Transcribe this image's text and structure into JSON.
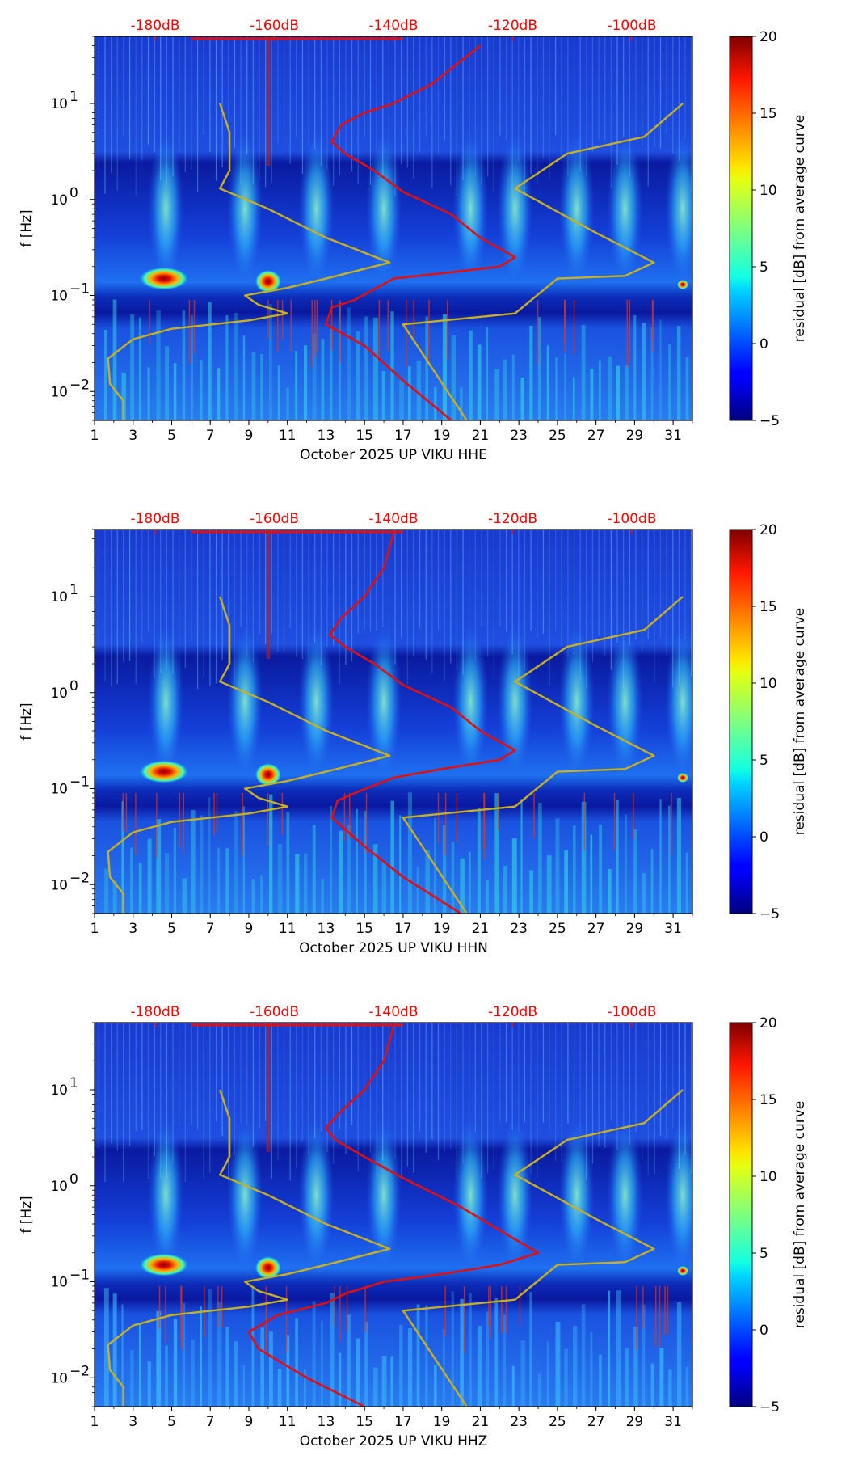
{
  "chart_data": [
    {
      "type": "heatmap",
      "channel": "HHE",
      "xlabel": "October 2025 UP VIKU  HHE",
      "ylabel": "f [Hz]",
      "xlim": [
        1,
        32
      ],
      "x_ticks": [
        "1",
        "3",
        "5",
        "7",
        "9",
        "11",
        "13",
        "15",
        "17",
        "19",
        "21",
        "23",
        "25",
        "27",
        "29",
        "31"
      ],
      "ylim": [
        0.005,
        50
      ],
      "y_ticks": [
        {
          "value": 0.01,
          "base": "10",
          "exp": "−2"
        },
        {
          "value": 0.1,
          "base": "10",
          "exp": "−1"
        },
        {
          "value": 1,
          "base": "10",
          "exp": "0"
        },
        {
          "value": 10,
          "base": "10",
          "exp": "1"
        }
      ],
      "db_scale_labels": [
        "-180dB",
        "-160dB",
        "-140dB",
        "-120dB",
        "-100dB"
      ],
      "colorbar": {
        "label": "residual [dB] from average curve",
        "min": -5,
        "max": 20,
        "ticks": [
          "−5",
          "0",
          "5",
          "10",
          "15",
          "20"
        ]
      },
      "series": [
        {
          "name": "average PSD curve",
          "color": "#e01010",
          "points": [
            [
              19.5,
              0.005
            ],
            [
              17,
              0.013
            ],
            [
              15,
              0.03
            ],
            [
              13,
              0.05
            ],
            [
              13.3,
              0.075
            ],
            [
              14.5,
              0.09
            ],
            [
              16.5,
              0.15
            ],
            [
              19,
              0.17
            ],
            [
              22,
              0.2
            ],
            [
              22.8,
              0.25
            ],
            [
              21,
              0.4
            ],
            [
              19.5,
              0.7
            ],
            [
              17,
              1.2
            ],
            [
              15.5,
              2
            ],
            [
              14,
              3
            ],
            [
              13.3,
              4
            ],
            [
              13.8,
              6
            ],
            [
              15,
              8
            ],
            [
              16.5,
              10
            ],
            [
              18.5,
              16
            ],
            [
              21,
              40
            ]
          ]
        },
        {
          "name": "noise model bounds",
          "color": "#c8b020",
          "points": [
            [
              20.3,
              0.005
            ],
            [
              17,
              0.05
            ],
            [
              22.8,
              0.065
            ],
            [
              25,
              0.15
            ],
            [
              28.5,
              0.16
            ],
            [
              30,
              0.22
            ],
            [
              27,
              0.45
            ],
            [
              22.8,
              1.3
            ],
            [
              25.5,
              3
            ],
            [
              29.5,
              4.5
            ],
            [
              31.5,
              10
            ]
          ]
        },
        {
          "name": "noise model bounds",
          "color": "#c8b020",
          "points": [
            [
              2.5,
              0.005
            ],
            [
              2.5,
              0.008
            ],
            [
              1.8,
              0.012
            ],
            [
              1.7,
              0.022
            ],
            [
              3,
              0.035
            ],
            [
              5,
              0.045
            ],
            [
              9,
              0.055
            ],
            [
              11,
              0.065
            ],
            [
              9.5,
              0.08
            ],
            [
              8.8,
              0.1
            ],
            [
              11,
              0.12
            ],
            [
              13,
              0.15
            ],
            [
              16.3,
              0.22
            ],
            [
              13,
              0.4
            ],
            [
              10,
              0.8
            ],
            [
              7.5,
              1.3
            ],
            [
              8,
              2
            ],
            [
              8,
              5
            ],
            [
              7.5,
              10
            ]
          ]
        }
      ]
    },
    {
      "type": "heatmap",
      "channel": "HHN",
      "xlabel": "October 2025 UP VIKU  HHN",
      "ylabel": "f [Hz]",
      "xlim": [
        1,
        32
      ],
      "x_ticks": [
        "1",
        "3",
        "5",
        "7",
        "9",
        "11",
        "13",
        "15",
        "17",
        "19",
        "21",
        "23",
        "25",
        "27",
        "29",
        "31"
      ],
      "ylim": [
        0.005,
        50
      ],
      "y_ticks": [
        {
          "value": 0.01,
          "base": "10",
          "exp": "−2"
        },
        {
          "value": 0.1,
          "base": "10",
          "exp": "−1"
        },
        {
          "value": 1,
          "base": "10",
          "exp": "0"
        },
        {
          "value": 10,
          "base": "10",
          "exp": "1"
        }
      ],
      "db_scale_labels": [
        "-180dB",
        "-160dB",
        "-140dB",
        "-120dB",
        "-100dB"
      ],
      "colorbar": {
        "label": "residual [dB] from average curve",
        "min": -5,
        "max": 20,
        "ticks": [
          "−5",
          "0",
          "5",
          "10",
          "15",
          "20"
        ]
      },
      "series": [
        {
          "name": "average PSD curve",
          "color": "#e01010",
          "points": [
            [
              20,
              0.005
            ],
            [
              17,
              0.012
            ],
            [
              15,
              0.025
            ],
            [
              13.3,
              0.05
            ],
            [
              13.6,
              0.075
            ],
            [
              14.5,
              0.09
            ],
            [
              16.5,
              0.13
            ],
            [
              19,
              0.16
            ],
            [
              22,
              0.2
            ],
            [
              22.8,
              0.25
            ],
            [
              21,
              0.4
            ],
            [
              19.5,
              0.7
            ],
            [
              17,
              1.2
            ],
            [
              15.5,
              2
            ],
            [
              14,
              3
            ],
            [
              13.2,
              4
            ],
            [
              13.8,
              6
            ],
            [
              15,
              10
            ],
            [
              16,
              20
            ],
            [
              16.5,
              45
            ]
          ]
        },
        {
          "name": "noise model bounds",
          "color": "#c8b020",
          "points": [
            [
              20.3,
              0.005
            ],
            [
              17,
              0.05
            ],
            [
              22.8,
              0.065
            ],
            [
              25,
              0.15
            ],
            [
              28.5,
              0.16
            ],
            [
              30,
              0.22
            ],
            [
              27,
              0.45
            ],
            [
              22.8,
              1.3
            ],
            [
              25.5,
              3
            ],
            [
              29.5,
              4.5
            ],
            [
              31.5,
              10
            ]
          ]
        },
        {
          "name": "noise model bounds",
          "color": "#c8b020",
          "points": [
            [
              2.5,
              0.005
            ],
            [
              2.5,
              0.008
            ],
            [
              1.8,
              0.012
            ],
            [
              1.7,
              0.022
            ],
            [
              3,
              0.035
            ],
            [
              5,
              0.045
            ],
            [
              9,
              0.055
            ],
            [
              11,
              0.065
            ],
            [
              9.5,
              0.08
            ],
            [
              8.8,
              0.1
            ],
            [
              11,
              0.12
            ],
            [
              13,
              0.15
            ],
            [
              16.3,
              0.22
            ],
            [
              13,
              0.4
            ],
            [
              10,
              0.8
            ],
            [
              7.5,
              1.3
            ],
            [
              8,
              2
            ],
            [
              8,
              5
            ],
            [
              7.5,
              10
            ]
          ]
        }
      ]
    },
    {
      "type": "heatmap",
      "channel": "HHZ",
      "xlabel": "October 2025 UP VIKU  HHZ",
      "ylabel": "f [Hz]",
      "xlim": [
        1,
        32
      ],
      "x_ticks": [
        "1",
        "3",
        "5",
        "7",
        "9",
        "11",
        "13",
        "15",
        "17",
        "19",
        "21",
        "23",
        "25",
        "27",
        "29",
        "31"
      ],
      "ylim": [
        0.005,
        50
      ],
      "y_ticks": [
        {
          "value": 0.01,
          "base": "10",
          "exp": "−2"
        },
        {
          "value": 0.1,
          "base": "10",
          "exp": "−1"
        },
        {
          "value": 1,
          "base": "10",
          "exp": "0"
        },
        {
          "value": 10,
          "base": "10",
          "exp": "1"
        }
      ],
      "db_scale_labels": [
        "-180dB",
        "-160dB",
        "-140dB",
        "-120dB",
        "-100dB"
      ],
      "colorbar": {
        "label": "residual [dB] from average curve",
        "min": -5,
        "max": 20,
        "ticks": [
          "−5",
          "0",
          "5",
          "10",
          "15",
          "20"
        ]
      },
      "series": [
        {
          "name": "average PSD curve",
          "color": "#e01010",
          "points": [
            [
              15,
              0.005
            ],
            [
              12,
              0.01
            ],
            [
              9.5,
              0.02
            ],
            [
              9,
              0.03
            ],
            [
              10.5,
              0.045
            ],
            [
              13,
              0.06
            ],
            [
              14,
              0.075
            ],
            [
              16,
              0.1
            ],
            [
              19,
              0.12
            ],
            [
              22,
              0.15
            ],
            [
              24,
              0.2
            ],
            [
              22.5,
              0.3
            ],
            [
              20,
              0.6
            ],
            [
              17,
              1.2
            ],
            [
              15,
              2
            ],
            [
              13.5,
              3
            ],
            [
              13,
              4
            ],
            [
              13.8,
              6
            ],
            [
              15,
              10
            ],
            [
              16,
              20
            ],
            [
              16.5,
              45
            ]
          ]
        },
        {
          "name": "noise model bounds",
          "color": "#c8b020",
          "points": [
            [
              20.3,
              0.005
            ],
            [
              17,
              0.05
            ],
            [
              22.8,
              0.065
            ],
            [
              25,
              0.15
            ],
            [
              28.5,
              0.16
            ],
            [
              30,
              0.22
            ],
            [
              27,
              0.45
            ],
            [
              22.8,
              1.3
            ],
            [
              25.5,
              3
            ],
            [
              29.5,
              4.5
            ],
            [
              31.5,
              10
            ]
          ]
        },
        {
          "name": "noise model bounds",
          "color": "#c8b020",
          "points": [
            [
              2.5,
              0.005
            ],
            [
              2.5,
              0.008
            ],
            [
              1.8,
              0.012
            ],
            [
              1.7,
              0.022
            ],
            [
              3,
              0.035
            ],
            [
              5,
              0.045
            ],
            [
              9,
              0.055
            ],
            [
              11,
              0.065
            ],
            [
              9.5,
              0.08
            ],
            [
              8.8,
              0.1
            ],
            [
              11,
              0.12
            ],
            [
              13,
              0.15
            ],
            [
              16.3,
              0.22
            ],
            [
              13,
              0.4
            ],
            [
              10,
              0.8
            ],
            [
              7.5,
              1.3
            ],
            [
              8,
              2
            ],
            [
              8,
              5
            ],
            [
              7.5,
              10
            ]
          ]
        }
      ]
    }
  ]
}
